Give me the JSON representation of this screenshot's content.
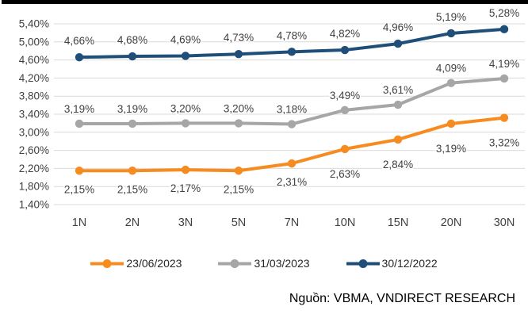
{
  "top_bar_color": "#000000",
  "source_note": "Nguồn: VBMA, VNDIRECT RESEARCH",
  "chart_data": {
    "type": "line",
    "title": "",
    "xlabel": "",
    "ylabel": "",
    "categories": [
      "1N",
      "2N",
      "3N",
      "5N",
      "7N",
      "10N",
      "15N",
      "20N",
      "30N"
    ],
    "series": [
      {
        "name": "23/06/2023",
        "color": "#F68C1F",
        "label_position": "below",
        "values": [
          2.15,
          2.15,
          2.17,
          2.15,
          2.31,
          2.63,
          2.84,
          3.19,
          3.32
        ],
        "labels": [
          "2,15%",
          "2,15%",
          "2,17%",
          "2,15%",
          "2,31%",
          "2,63%",
          "2,84%",
          "3,19%",
          "3,32%"
        ]
      },
      {
        "name": "31/03/2023",
        "color": "#A6A6A6",
        "label_position": "above",
        "values": [
          3.19,
          3.19,
          3.2,
          3.2,
          3.18,
          3.49,
          3.61,
          4.09,
          4.19
        ],
        "labels": [
          "3,19%",
          "3,19%",
          "3,20%",
          "3,20%",
          "3,18%",
          "3,49%",
          "3,61%",
          "4,09%",
          "4,19%"
        ]
      },
      {
        "name": "30/12/2022",
        "color": "#1F4E79",
        "label_position": "above",
        "values": [
          4.66,
          4.68,
          4.69,
          4.73,
          4.78,
          4.82,
          4.96,
          5.19,
          5.28
        ],
        "labels": [
          "4,66%",
          "4,68%",
          "4,69%",
          "4,73%",
          "4,78%",
          "4,82%",
          "4,96%",
          "5,19%",
          "5,28%"
        ]
      }
    ],
    "y_ticks": [
      "5,40%",
      "5,00%",
      "4,60%",
      "4,20%",
      "3,80%",
      "3,40%",
      "3,00%",
      "2,60%",
      "2,20%",
      "1,80%",
      "1,40%"
    ],
    "ylim": [
      1.4,
      5.4
    ],
    "y_step": 0.4,
    "grid": true,
    "grid_color": "#D9D9D9",
    "axis_text_color": "#404040",
    "label_text_color": "#404040",
    "legend_text_color": "#262626",
    "legend_position": "bottom"
  }
}
